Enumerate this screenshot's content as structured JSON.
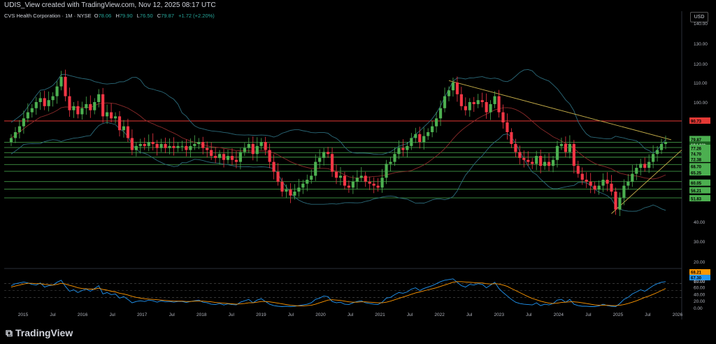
{
  "header": {
    "creator_text": "UDIS_View created with TradingView.com, Nov 12, 2025 08:17 UTC"
  },
  "legend": {
    "symbol": "CVS Health Corporation · 1M · NYSE",
    "open_label": "O",
    "open": "78.06",
    "high_label": "H",
    "high": "79.90",
    "low_label": "L",
    "low": "76.50",
    "close_label": "C",
    "close": "79.87",
    "change": "+1.72 (+2.20%)"
  },
  "currency": "USD",
  "branding": {
    "logo_text": "TradingView"
  },
  "colors": {
    "up": "#26a69a",
    "up_fill": "#4caf50",
    "down": "#f23645",
    "bb": "#2b6a7a",
    "ma": "#8a2a2a",
    "hline": "#4caf50",
    "resistance": "#e53935",
    "trend": "#c8b04a",
    "rsi_blue": "#2196f3",
    "rsi_orange": "#ff9800"
  },
  "chart_data": [
    {
      "type": "candlestick",
      "title": "CVS Health Corporation · 1M · NYSE",
      "x_ticks": [
        "2015",
        "Jul",
        "2016",
        "Jul",
        "2017",
        "Jul",
        "2018",
        "Jul",
        "2019",
        "Jul",
        "2020",
        "Jul",
        "2021",
        "Jul",
        "2022",
        "Jul",
        "2023",
        "Jul",
        "2024",
        "Jul",
        "2025",
        "Jul",
        "2026"
      ],
      "y_ticks": [
        "140.00",
        "130.00",
        "120.00",
        "110.00",
        "100.00",
        "80.00",
        "40.00",
        "30.00",
        "20.00",
        "10.00"
      ],
      "ylim": [
        3,
        142
      ],
      "closes": [
        82,
        85,
        88,
        92,
        95,
        97,
        100,
        102,
        98,
        101,
        103,
        108,
        113,
        103,
        96,
        98,
        94,
        97,
        99,
        96,
        100,
        104,
        93,
        95,
        92,
        93,
        86,
        88,
        82,
        76,
        78,
        79,
        78,
        80,
        79,
        77,
        79,
        77,
        78,
        77,
        78,
        78,
        76,
        78,
        79,
        80,
        77,
        76,
        73,
        72,
        74,
        71,
        73,
        71,
        70,
        75,
        77,
        79,
        74,
        78,
        80,
        76,
        70,
        65,
        60,
        55,
        56,
        53,
        55,
        57,
        59,
        61,
        63,
        70,
        72,
        75,
        74,
        65,
        62,
        63,
        58,
        57,
        60,
        62,
        63,
        60,
        59,
        58,
        57,
        62,
        69,
        70,
        74,
        77,
        76,
        78,
        82,
        84,
        80,
        83,
        85,
        88,
        92,
        97,
        103,
        106,
        110,
        104,
        98,
        96,
        100,
        99,
        101,
        100,
        95,
        99,
        103,
        95,
        90,
        85,
        79,
        75,
        72,
        71,
        70,
        69,
        73,
        68,
        70,
        68,
        71,
        78,
        79,
        75,
        79,
        68,
        64,
        61,
        60,
        58,
        56,
        58,
        61,
        59,
        55,
        46,
        52,
        58,
        60,
        64,
        67,
        69,
        67,
        70,
        74,
        76,
        79,
        80
      ],
      "resistance_line": 90.73,
      "horizontal_levels": [
        79.87,
        77.26,
        74.7,
        72.38,
        68.7,
        65.25,
        60.05,
        56.21,
        51.83
      ],
      "price_labels": [
        "90.73",
        "79.87",
        "19d 03h",
        "77.26",
        "74.70",
        "72.38",
        "68.70",
        "65.25",
        "60.05",
        "56.21",
        "51.83"
      ],
      "overlays": [
        "Bollinger Bands",
        "Moving Average",
        "Trendlines"
      ]
    },
    {
      "type": "line",
      "title": "",
      "y_ticks": [
        "80.00",
        "60.00",
        "40.00",
        "20.00",
        "0.00"
      ],
      "ylim": [
        0,
        100
      ],
      "series": [
        {
          "values": [
            64,
            70,
            72,
            75,
            72,
            68,
            66,
            72,
            60,
            64,
            66,
            74,
            80,
            62,
            48,
            52,
            44,
            50,
            54,
            48,
            56,
            64,
            40,
            44,
            38,
            40,
            28,
            32,
            24,
            14,
            18,
            20,
            18,
            22,
            20,
            16,
            20,
            17,
            18,
            16,
            18,
            18,
            15,
            18,
            20,
            22,
            16,
            14,
            10,
            9,
            12,
            8,
            11,
            9,
            8,
            16,
            20,
            24,
            14,
            22,
            26,
            18,
            10,
            6,
            4,
            3,
            4,
            3,
            4,
            6,
            8,
            10,
            14,
            24,
            28,
            34,
            32,
            18,
            14,
            16,
            10,
            9,
            14,
            18,
            20,
            14,
            12,
            10,
            9,
            16,
            28,
            30,
            38,
            44,
            42,
            46,
            54,
            58,
            50,
            56,
            60,
            64,
            70,
            76,
            80,
            82,
            84,
            74,
            64,
            60,
            68,
            66,
            70,
            68,
            58,
            66,
            74,
            56,
            44,
            34,
            24,
            16,
            12,
            10,
            9,
            8,
            14,
            6,
            10,
            8,
            12,
            22,
            24,
            16,
            24,
            10,
            6,
            4,
            4,
            3,
            3,
            5,
            10,
            6,
            4,
            3,
            12,
            24,
            30,
            40,
            46,
            52,
            48,
            56,
            64,
            70,
            74,
            76
          ]
        },
        {
          "values": [
            60,
            63,
            66,
            69,
            71,
            71,
            70,
            70,
            68,
            67,
            66,
            68,
            71,
            69,
            65,
            62,
            58,
            56,
            55,
            54,
            54,
            57,
            53,
            51,
            48,
            46,
            42,
            40,
            37,
            33,
            30,
            28,
            26,
            25,
            24,
            23,
            22,
            21,
            20,
            19,
            19,
            19,
            18,
            18,
            19,
            19,
            19,
            18,
            17,
            15,
            14,
            13,
            12,
            11,
            10,
            11,
            12,
            14,
            14,
            16,
            18,
            18,
            17,
            15,
            13,
            11,
            9,
            7,
            6,
            5,
            5,
            6,
            7,
            10,
            14,
            18,
            22,
            23,
            22,
            21,
            19,
            17,
            16,
            16,
            17,
            17,
            16,
            15,
            14,
            14,
            16,
            19,
            23,
            27,
            31,
            35,
            39,
            43,
            46,
            49,
            52,
            55,
            58,
            62,
            66,
            70,
            74,
            76,
            76,
            75,
            74,
            73,
            72,
            72,
            70,
            69,
            70,
            69,
            66,
            62,
            56,
            50,
            44,
            38,
            32,
            27,
            23,
            19,
            16,
            13,
            12,
            13,
            15,
            16,
            17,
            17,
            16,
            14,
            12,
            10,
            8,
            7,
            7,
            7,
            6,
            6,
            7,
            9,
            12,
            16,
            20,
            25,
            30,
            34,
            39,
            44,
            50,
            56
          ]
        }
      ],
      "price_labels": [
        "68.21",
        "67.30"
      ]
    }
  ]
}
